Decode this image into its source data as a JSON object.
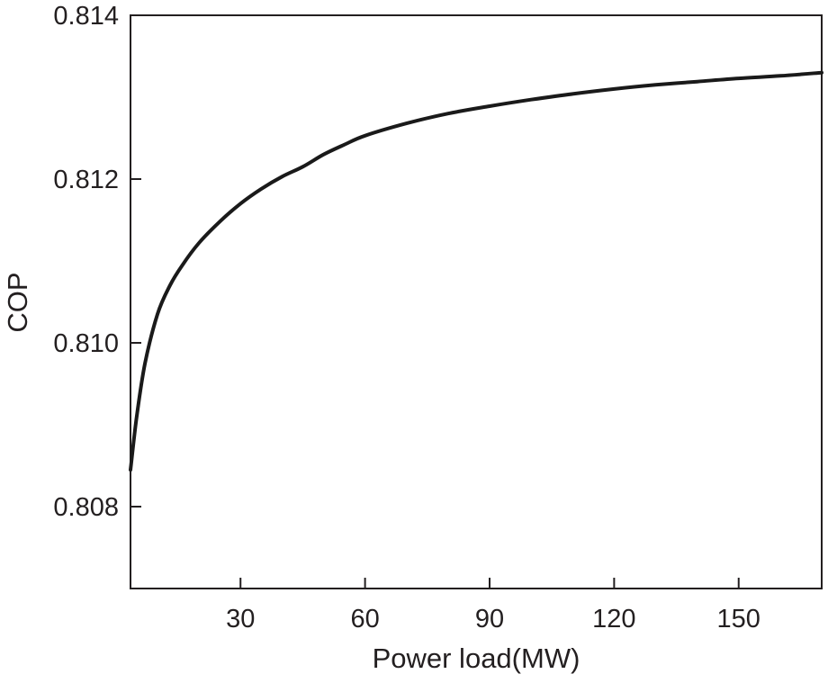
{
  "chart_data": {
    "type": "line",
    "title": "",
    "xlabel": "Power load(MW)",
    "ylabel": "COP",
    "xlim": [
      3.5,
      170
    ],
    "ylim": [
      0.807,
      0.814
    ],
    "x_ticks": [
      30,
      60,
      90,
      120,
      150
    ],
    "x_tick_labels": [
      "30",
      "60",
      "90",
      "120",
      "150"
    ],
    "y_ticks": [
      0.808,
      0.81,
      0.812,
      0.814
    ],
    "y_tick_labels": [
      "0.808",
      "0.810",
      "0.812",
      "0.814"
    ],
    "grid": false,
    "legend": "none",
    "line_color": "#1a1a1a",
    "series": [
      {
        "x": [
          3.5,
          5,
          7,
          10,
          13,
          16,
          20,
          25,
          30,
          35,
          40,
          45,
          50,
          55,
          60,
          70,
          80,
          90,
          100,
          110,
          120,
          130,
          140,
          150,
          160,
          170
        ],
        "values": [
          0.80845,
          0.8091,
          0.80975,
          0.81035,
          0.8107,
          0.81095,
          0.81122,
          0.81148,
          0.8117,
          0.81188,
          0.81203,
          0.81215,
          0.8123,
          0.81242,
          0.81253,
          0.81268,
          0.8128,
          0.81289,
          0.81297,
          0.81304,
          0.8131,
          0.81315,
          0.81319,
          0.81323,
          0.81326,
          0.8133
        ]
      }
    ]
  }
}
